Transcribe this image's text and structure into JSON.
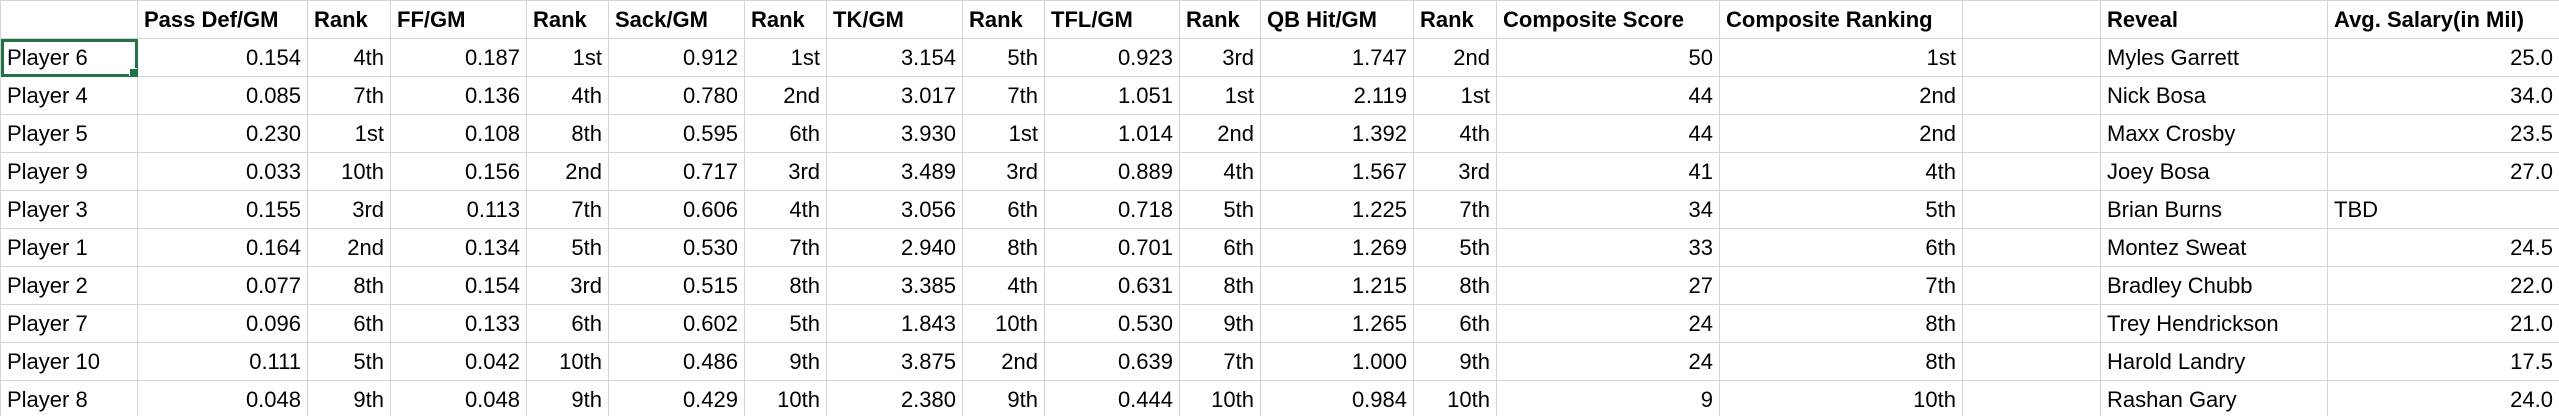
{
  "sheet": {
    "headers": [
      "",
      "Pass Def/GM",
      "Rank",
      "FF/GM",
      "Rank",
      "Sack/GM",
      "Rank",
      "TK/GM",
      "Rank",
      "TFL/GM",
      "Rank",
      "QB Hit/GM",
      "Rank",
      "Composite Score",
      "Composite Ranking",
      "",
      "Reveal",
      "Avg. Salary(in Mil)"
    ],
    "rows": [
      [
        "Player 6",
        "0.154",
        "4th",
        "0.187",
        "1st",
        "0.912",
        "1st",
        "3.154",
        "5th",
        "0.923",
        "3rd",
        "1.747",
        "2nd",
        "50",
        "1st",
        "",
        "Myles Garrett",
        "25.0"
      ],
      [
        "Player 4",
        "0.085",
        "7th",
        "0.136",
        "4th",
        "0.780",
        "2nd",
        "3.017",
        "7th",
        "1.051",
        "1st",
        "2.119",
        "1st",
        "44",
        "2nd",
        "",
        "Nick Bosa",
        "34.0"
      ],
      [
        "Player 5",
        "0.230",
        "1st",
        "0.108",
        "8th",
        "0.595",
        "6th",
        "3.930",
        "1st",
        "1.014",
        "2nd",
        "1.392",
        "4th",
        "44",
        "2nd",
        "",
        "Maxx Crosby",
        "23.5"
      ],
      [
        "Player 9",
        "0.033",
        "10th",
        "0.156",
        "2nd",
        "0.717",
        "3rd",
        "3.489",
        "3rd",
        "0.889",
        "4th",
        "1.567",
        "3rd",
        "41",
        "4th",
        "",
        "Joey Bosa",
        "27.0"
      ],
      [
        "Player 3",
        "0.155",
        "3rd",
        "0.113",
        "7th",
        "0.606",
        "4th",
        "3.056",
        "6th",
        "0.718",
        "5th",
        "1.225",
        "7th",
        "34",
        "5th",
        "",
        "Brian Burns",
        "TBD"
      ],
      [
        "Player 1",
        "0.164",
        "2nd",
        "0.134",
        "5th",
        "0.530",
        "7th",
        "2.940",
        "8th",
        "0.701",
        "6th",
        "1.269",
        "5th",
        "33",
        "6th",
        "",
        "Montez Sweat",
        "24.5"
      ],
      [
        "Player 2",
        "0.077",
        "8th",
        "0.154",
        "3rd",
        "0.515",
        "8th",
        "3.385",
        "4th",
        "0.631",
        "8th",
        "1.215",
        "8th",
        "27",
        "7th",
        "",
        "Bradley Chubb",
        "22.0"
      ],
      [
        "Player 7",
        "0.096",
        "6th",
        "0.133",
        "6th",
        "0.602",
        "5th",
        "1.843",
        "10th",
        "0.530",
        "9th",
        "1.265",
        "6th",
        "24",
        "8th",
        "",
        "Trey Hendrickson",
        "21.0"
      ],
      [
        "Player 10",
        "0.111",
        "5th",
        "0.042",
        "10th",
        "0.486",
        "9th",
        "3.875",
        "2nd",
        "0.639",
        "7th",
        "1.000",
        "9th",
        "24",
        "8th",
        "",
        "Harold Landry",
        "17.5"
      ],
      [
        "Player 8",
        "0.048",
        "9th",
        "0.048",
        "9th",
        "0.429",
        "10th",
        "2.380",
        "9th",
        "0.444",
        "10th",
        "0.984",
        "10th",
        "9",
        "10th",
        "",
        "Rashan Gary",
        "24.0"
      ]
    ],
    "selected": {
      "row": 0,
      "col": 0
    },
    "accent_color": "#217346"
  }
}
